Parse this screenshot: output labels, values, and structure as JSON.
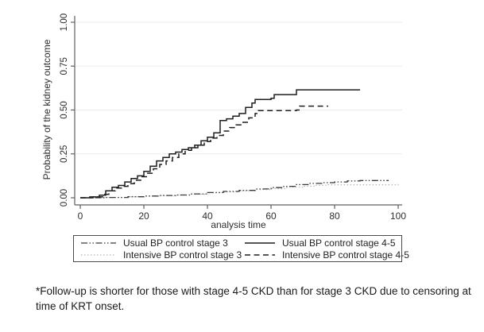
{
  "chart_data": {
    "type": "line",
    "subtype": "kaplan-meier-step",
    "title": "",
    "xlabel": "analysis time",
    "ylabel": "Probability of the kidney outcome",
    "xlim": [
      0,
      100
    ],
    "ylim": [
      0,
      1
    ],
    "x_tick_values": [
      0,
      20,
      40,
      60,
      80,
      100
    ],
    "x_tick_labels": [
      "0",
      "20",
      "40",
      "60",
      "80",
      "100"
    ],
    "y_tick_values": [
      0,
      0.25,
      0.5,
      0.75,
      1.0
    ],
    "y_tick_labels": [
      "0.00",
      "0.25",
      "0.50",
      "0.75",
      "1.00"
    ],
    "y_gridline_values": [
      0.25,
      0.5,
      0.75,
      1.0
    ],
    "grid": "horizontal-light",
    "legend_position": "bottom",
    "colors": {
      "axis": "#606060",
      "gridline": "#ebebeb",
      "curve_dark": "#1f1f1f",
      "curve_mid": "#3a3a3a",
      "curve_light": "#b5b5b5"
    },
    "series": [
      {
        "name": "Intensive BP control stage 3",
        "line_style": "dotted-light",
        "color": "#b5b5b5",
        "dasharray": "1.5 2.5",
        "width": 1.2,
        "points": [
          [
            0,
            0
          ],
          [
            8,
            0.002
          ],
          [
            15,
            0.006
          ],
          [
            20,
            0.009
          ],
          [
            25,
            0.012
          ],
          [
            30,
            0.015
          ],
          [
            35,
            0.02
          ],
          [
            40,
            0.028
          ],
          [
            45,
            0.034
          ],
          [
            50,
            0.04
          ],
          [
            55,
            0.047
          ],
          [
            60,
            0.052
          ],
          [
            65,
            0.06
          ],
          [
            70,
            0.066
          ],
          [
            74,
            0.071
          ],
          [
            78,
            0.074
          ],
          [
            100,
            0.078
          ]
        ]
      },
      {
        "name": "Usual BP control stage 3",
        "line_style": "dash-dot-dot",
        "color": "#3a3a3a",
        "dasharray": "8 2.5 1.5 2.5 1.5 2.5",
        "width": 1.3,
        "points": [
          [
            0,
            0
          ],
          [
            8,
            0.002
          ],
          [
            15,
            0.006
          ],
          [
            20,
            0.01
          ],
          [
            25,
            0.013
          ],
          [
            30,
            0.016
          ],
          [
            35,
            0.022
          ],
          [
            40,
            0.03
          ],
          [
            45,
            0.036
          ],
          [
            50,
            0.042
          ],
          [
            55,
            0.05
          ],
          [
            60,
            0.058
          ],
          [
            64,
            0.065
          ],
          [
            68,
            0.075
          ],
          [
            72,
            0.082
          ],
          [
            76,
            0.086
          ],
          [
            80,
            0.09
          ],
          [
            84,
            0.096
          ],
          [
            88,
            0.098
          ],
          [
            97,
            0.098
          ]
        ]
      },
      {
        "name": "Intensive BP control stage 4-5",
        "line_style": "dashed",
        "color": "#1f1f1f",
        "dasharray": "7 4.5",
        "width": 1.5,
        "points": [
          [
            0,
            0
          ],
          [
            4,
            0.005
          ],
          [
            7,
            0.02
          ],
          [
            9,
            0.04
          ],
          [
            11,
            0.055
          ],
          [
            13,
            0.065
          ],
          [
            15,
            0.08
          ],
          [
            17,
            0.1
          ],
          [
            19,
            0.12
          ],
          [
            21,
            0.14
          ],
          [
            23,
            0.165
          ],
          [
            25,
            0.19
          ],
          [
            27,
            0.21
          ],
          [
            29,
            0.23
          ],
          [
            31,
            0.25
          ],
          [
            33,
            0.27
          ],
          [
            35,
            0.285
          ],
          [
            37,
            0.3
          ],
          [
            39,
            0.32
          ],
          [
            41,
            0.34
          ],
          [
            43,
            0.355
          ],
          [
            45,
            0.38
          ],
          [
            47,
            0.4
          ],
          [
            49,
            0.415
          ],
          [
            51,
            0.43
          ],
          [
            53,
            0.455
          ],
          [
            55,
            0.48
          ],
          [
            56,
            0.497
          ],
          [
            68,
            0.5
          ],
          [
            69,
            0.522
          ],
          [
            78,
            0.522
          ]
        ]
      },
      {
        "name": "Usual BP control stage 4-5",
        "line_style": "solid",
        "color": "#1f1f1f",
        "dasharray": "",
        "width": 1.5,
        "points": [
          [
            0,
            0
          ],
          [
            3,
            0.005
          ],
          [
            6,
            0.015
          ],
          [
            8,
            0.04
          ],
          [
            10,
            0.06
          ],
          [
            12,
            0.07
          ],
          [
            14,
            0.09
          ],
          [
            16,
            0.11
          ],
          [
            18,
            0.125
          ],
          [
            20,
            0.15
          ],
          [
            22,
            0.18
          ],
          [
            24,
            0.21
          ],
          [
            26,
            0.23
          ],
          [
            28,
            0.25
          ],
          [
            30,
            0.26
          ],
          [
            32,
            0.275
          ],
          [
            34,
            0.285
          ],
          [
            36,
            0.3
          ],
          [
            38,
            0.325
          ],
          [
            40,
            0.345
          ],
          [
            42,
            0.37
          ],
          [
            44,
            0.44
          ],
          [
            46,
            0.45
          ],
          [
            48,
            0.465
          ],
          [
            50,
            0.48
          ],
          [
            52,
            0.515
          ],
          [
            54,
            0.54
          ],
          [
            55,
            0.56
          ],
          [
            60,
            0.567
          ],
          [
            61,
            0.588
          ],
          [
            67,
            0.588
          ],
          [
            68,
            0.615
          ],
          [
            88,
            0.615
          ]
        ]
      }
    ]
  },
  "legend": {
    "items": [
      {
        "series": 1,
        "label": "Usual BP control stage 3"
      },
      {
        "series": 3,
        "label": "Usual BP control stage 4-5"
      },
      {
        "series": 0,
        "label": "Intensive BP control stage 3"
      },
      {
        "series": 2,
        "label": "Intensive BP control stage 4-5"
      }
    ]
  },
  "footnote": {
    "line1": "*Follow-up is shorter for those with stage 4-5 CKD than for stage 3 CKD due to censoring at",
    "line2": "time of KRT onset."
  }
}
